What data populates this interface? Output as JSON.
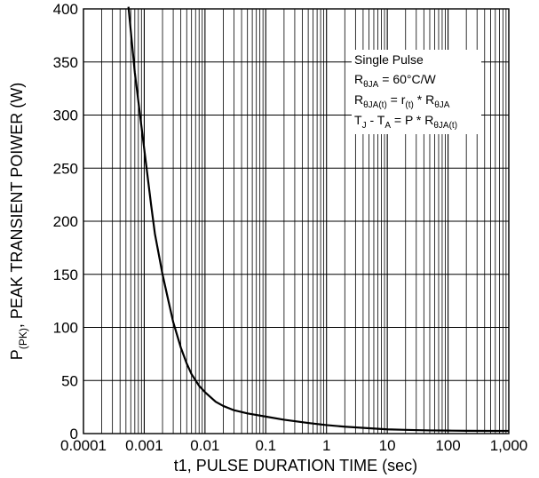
{
  "chart_data": {
    "type": "line",
    "xlabel": "t1, PULSE DURATION TIME (sec)",
    "ylabel_parts": {
      "main_before": "P",
      "main_sub": "(PK)",
      "main_after": ", PEAK TRANSIENT POIWER (W)"
    },
    "x_scale": "log",
    "xlim": [
      0.0001,
      1000
    ],
    "ylim": [
      0,
      400
    ],
    "x_ticks": [
      0.0001,
      0.001,
      0.01,
      0.1,
      1,
      10,
      100,
      1000
    ],
    "x_tick_labels": [
      "0.0001",
      "0.001",
      "0.01",
      "0.1",
      "1",
      "10",
      "100",
      "1,000"
    ],
    "y_ticks": [
      0,
      50,
      100,
      150,
      200,
      250,
      300,
      350,
      400
    ],
    "y_tick_labels": [
      "0",
      "50",
      "100",
      "150",
      "200",
      "250",
      "300",
      "350",
      "400"
    ],
    "grid": true,
    "legend": "none",
    "series": [
      {
        "x": [
          0.00055,
          0.0007,
          0.001,
          0.0013,
          0.0015,
          0.002,
          0.0025,
          0.003,
          0.004,
          0.005,
          0.006,
          0.008,
          0.01,
          0.015,
          0.02,
          0.03,
          0.05,
          0.1,
          0.2,
          0.5,
          1,
          2,
          5,
          10,
          20,
          50,
          100,
          200,
          500,
          1000
        ],
        "y": [
          402,
          340,
          268,
          215,
          188,
          150,
          125,
          105,
          81,
          66,
          56,
          45,
          39,
          30,
          26,
          22,
          19,
          16,
          13,
          10,
          8,
          6.5,
          5,
          4,
          3.5,
          3,
          2.8,
          2.6,
          2.5,
          2.5
        ]
      }
    ],
    "annotation": {
      "line1": "Single Pulse",
      "line2": {
        "a": "R",
        "a_sub": "θJA",
        "b": " = 60°C/W"
      },
      "line3": {
        "a": "R",
        "a_sub": "θJA(t)",
        "b": " = r",
        "b_sub": "(t)",
        "c": " * R",
        "c_sub": "θJA"
      },
      "line4": {
        "a": "T",
        "a_sub": "J",
        "b": " - T",
        "b_sub": "A",
        "c": " = P * R",
        "c_sub": "θJA(t)"
      }
    }
  }
}
